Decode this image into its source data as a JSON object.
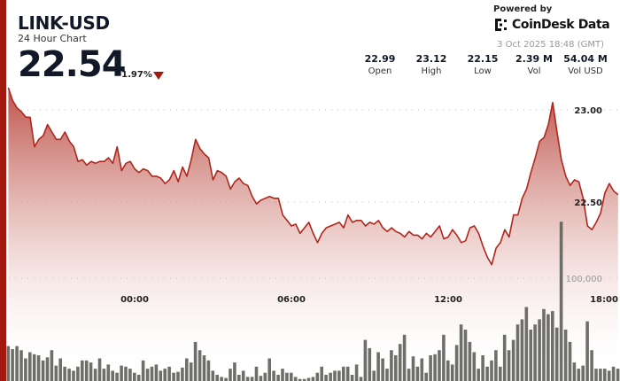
{
  "header": {
    "symbol": "LINK-USD",
    "subtitle": "24 Hour Chart",
    "price": "22.54",
    "change": "-1.97%",
    "change_direction": "down",
    "powered_by": "Powered by",
    "brand": "CoinDesk Data",
    "timestamp": "3 Oct 2025 18:48 (GMT)"
  },
  "stats": [
    {
      "value": "22.99",
      "label": "Open"
    },
    {
      "value": "23.12",
      "label": "High"
    },
    {
      "value": "22.15",
      "label": "Low"
    },
    {
      "value": "2.39 M",
      "label": "Vol"
    },
    {
      "value": "54.04 M",
      "label": "Vol USD"
    }
  ],
  "colors": {
    "accent": "#a3180e",
    "line": "#b0261b",
    "volume": "#5f5f5a"
  },
  "chart_data": {
    "type": "area",
    "price_ticks": [
      "23.00",
      "22.50"
    ],
    "price_tick_values": [
      23.0,
      22.5
    ],
    "volume_tick": "100,000",
    "volume_tick_value": 100000,
    "x_ticks": [
      "00:00",
      "06:00",
      "12:00",
      "18:00"
    ],
    "grid": true,
    "x": [
      "19:10",
      "19:20",
      "19:30",
      "19:40",
      "19:50",
      "20:00",
      "20:10",
      "20:20",
      "20:30",
      "20:40",
      "20:50",
      "21:00",
      "21:10",
      "21:20",
      "21:30",
      "21:40",
      "21:50",
      "22:00",
      "22:10",
      "22:20",
      "22:30",
      "22:40",
      "22:50",
      "23:00",
      "23:10",
      "23:20",
      "23:30",
      "23:40",
      "23:50",
      "00:00",
      "00:10",
      "00:20",
      "00:30",
      "00:40",
      "00:50",
      "01:00",
      "01:10",
      "01:20",
      "01:30",
      "01:40",
      "01:50",
      "02:00",
      "02:10",
      "02:20",
      "02:30",
      "02:40",
      "02:50",
      "03:00",
      "03:10",
      "03:20",
      "03:30",
      "03:40",
      "03:50",
      "04:00",
      "04:10",
      "04:20",
      "04:30",
      "04:40",
      "04:50",
      "05:00",
      "05:10",
      "05:20",
      "05:30",
      "05:40",
      "05:50",
      "06:00",
      "06:10",
      "06:20",
      "06:30",
      "06:40",
      "06:50",
      "07:00",
      "07:10",
      "07:20",
      "07:30",
      "07:40",
      "07:50",
      "08:00",
      "08:10",
      "08:20",
      "08:30",
      "08:40",
      "08:50",
      "09:00",
      "09:10",
      "09:20",
      "09:30",
      "09:40",
      "09:50",
      "10:00",
      "10:10",
      "10:20",
      "10:30",
      "10:40",
      "10:50",
      "11:00",
      "11:10",
      "11:20",
      "11:30",
      "11:40",
      "11:50",
      "12:00",
      "12:10",
      "12:20",
      "12:30",
      "12:40",
      "12:50",
      "13:00",
      "13:10",
      "13:20",
      "13:30",
      "13:40",
      "13:50",
      "14:00",
      "14:10",
      "14:20",
      "14:30",
      "14:40",
      "14:50",
      "15:00",
      "15:10",
      "15:20",
      "15:30",
      "15:40",
      "15:50",
      "16:00",
      "16:10",
      "16:20",
      "16:30",
      "16:40",
      "16:50",
      "17:00",
      "17:10",
      "17:20",
      "17:30",
      "17:40",
      "17:50",
      "18:00",
      "18:10",
      "18:20",
      "18:30"
    ],
    "price": [
      23.12,
      23.05,
      23.01,
      22.99,
      22.96,
      22.96,
      22.8,
      22.84,
      22.86,
      22.92,
      22.88,
      22.84,
      22.84,
      22.88,
      22.83,
      22.8,
      22.72,
      22.73,
      22.7,
      22.72,
      22.71,
      22.72,
      22.72,
      22.74,
      22.71,
      22.8,
      22.67,
      22.71,
      22.72,
      22.68,
      22.66,
      22.68,
      22.67,
      22.64,
      22.64,
      22.63,
      22.6,
      22.62,
      22.67,
      22.61,
      22.69,
      22.64,
      22.73,
      22.84,
      22.79,
      22.76,
      22.74,
      22.62,
      22.67,
      22.66,
      22.64,
      22.57,
      22.61,
      22.63,
      22.6,
      22.59,
      22.53,
      22.49,
      22.51,
      22.52,
      22.53,
      22.52,
      22.52,
      22.43,
      22.4,
      22.37,
      22.38,
      22.33,
      22.36,
      22.39,
      22.33,
      22.28,
      22.33,
      22.36,
      22.37,
      22.38,
      22.39,
      22.36,
      22.43,
      22.39,
      22.4,
      22.4,
      22.37,
      22.39,
      22.38,
      22.4,
      22.36,
      22.34,
      22.36,
      22.34,
      22.33,
      22.31,
      22.34,
      22.32,
      22.32,
      22.3,
      22.33,
      22.31,
      22.34,
      22.37,
      22.3,
      22.31,
      22.35,
      22.32,
      22.28,
      22.29,
      22.36,
      22.37,
      22.33,
      22.26,
      22.2,
      22.16,
      22.25,
      22.28,
      22.35,
      22.31,
      22.43,
      22.43,
      22.52,
      22.57,
      22.66,
      22.74,
      22.83,
      22.85,
      22.92,
      23.04,
      22.88,
      22.73,
      22.64,
      22.59,
      22.62,
      22.61,
      22.52,
      22.37,
      22.35,
      22.39,
      22.44,
      22.55,
      22.6,
      22.56,
      22.54
    ],
    "volume": [
      34000,
      31000,
      34000,
      30000,
      22000,
      28000,
      26000,
      25000,
      20000,
      23000,
      30000,
      15000,
      22000,
      14000,
      12000,
      10000,
      14000,
      20000,
      20000,
      18000,
      12000,
      22000,
      12000,
      16000,
      10000,
      8000,
      15000,
      14000,
      12000,
      8000,
      6000,
      20000,
      12000,
      14000,
      16000,
      10000,
      12000,
      14000,
      8000,
      9000,
      13000,
      22000,
      18000,
      38000,
      30000,
      25000,
      20000,
      10000,
      6000,
      4000,
      3000,
      12000,
      18000,
      6000,
      10000,
      4000,
      4000,
      14000,
      5000,
      8000,
      22000,
      10000,
      6000,
      12000,
      8000,
      8000,
      4000,
      2000,
      2000,
      3000,
      4000,
      8000,
      14000,
      6000,
      8000,
      10000,
      10000,
      14000,
      14000,
      6000,
      16000,
      4000,
      40000,
      32000,
      10000,
      28000,
      22000,
      12000,
      30000,
      25000,
      36000,
      45000,
      12000,
      24000,
      14000,
      22000,
      8000,
      25000,
      26000,
      30000,
      45000,
      20000,
      16000,
      35000,
      55000,
      50000,
      38000,
      28000,
      12000,
      25000,
      14000,
      20000,
      30000,
      14000,
      45000,
      30000,
      40000,
      55000,
      60000,
      72000,
      50000,
      55000,
      60000,
      70000,
      65000,
      68000,
      52000,
      155000,
      50000,
      38000,
      18000,
      12000,
      15000,
      58000,
      30000,
      12000,
      12000,
      12000,
      10000,
      14000,
      12000
    ]
  }
}
